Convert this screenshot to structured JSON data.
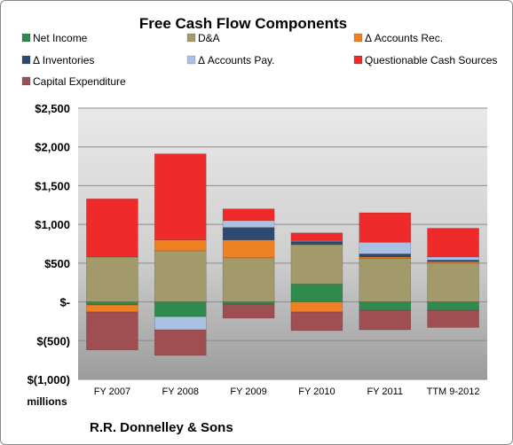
{
  "chart_data": {
    "type": "bar",
    "stacked": true,
    "title": "Free Cash Flow Components",
    "categories": [
      "FY 2007",
      "FY 2008",
      "FY 2009",
      "FY 2010",
      "FY 2011",
      "TTM 9-2012"
    ],
    "y_ticks": [
      "$2,500",
      "$2,000",
      "$1,500",
      "$1,000",
      "$500",
      "$-",
      "$(500)",
      "$(1,000)"
    ],
    "y_tick_values": [
      2500,
      2000,
      1500,
      1000,
      500,
      0,
      -500,
      -1000
    ],
    "ylim": [
      -1000,
      2500
    ],
    "ylabel": "millions",
    "footer": "R.R. Donnelley & Sons",
    "grid": true,
    "legend_position": "top",
    "series": [
      {
        "name": "Net Income",
        "color": "#2f8a4e",
        "values": [
          -40,
          -190,
          -30,
          230,
          -110,
          -110
        ]
      },
      {
        "name": "D&A",
        "color": "#a29a6a",
        "values": [
          580,
          660,
          570,
          510,
          560,
          500
        ]
      },
      {
        "name": "Δ Accounts Rec.",
        "color": "#ee8124",
        "values": [
          -90,
          140,
          230,
          -130,
          20,
          20
        ]
      },
      {
        "name": "Δ Inventories",
        "color": "#2e4a72",
        "values": [
          0,
          0,
          160,
          40,
          40,
          20
        ]
      },
      {
        "name": "Δ Accounts Pay.",
        "color": "#a9c2e4",
        "values": [
          0,
          -170,
          90,
          10,
          150,
          40
        ]
      },
      {
        "name": "Questionable Cash Sources",
        "color": "#ef2a2a",
        "values": [
          750,
          1110,
          150,
          100,
          380,
          370
        ]
      },
      {
        "name": "Capital Expenditure",
        "color": "#9f4e52",
        "values": [
          -490,
          -330,
          -180,
          -240,
          -250,
          -220
        ]
      }
    ]
  }
}
